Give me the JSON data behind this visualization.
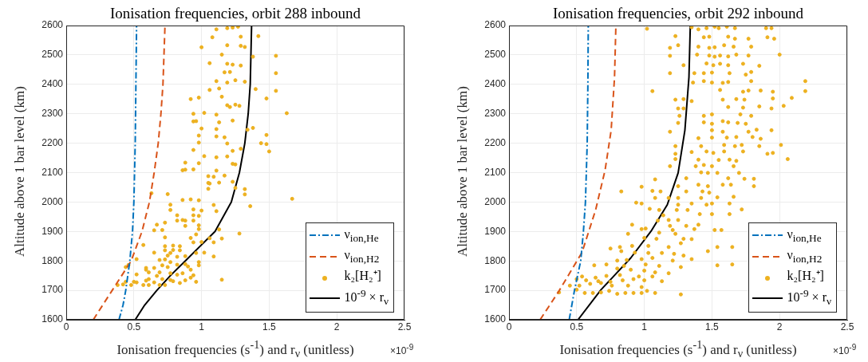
{
  "chart_data": [
    {
      "type": "line",
      "title": "Ionisation frequencies, orbit 288 inbound",
      "xlabel": "Ionisation frequencies (s$^{-1}$) and r$_{ν}$ (unitless)",
      "ylabel": "Altitude above 1 bar level (km)",
      "annotations": [
        "×10$^{-9}$"
      ],
      "xlim": [
        0,
        2.5
      ],
      "xticks": [
        0,
        0.5,
        1,
        1.5,
        2,
        2.5
      ],
      "ylim": [
        1600,
        2600
      ],
      "yticks": [
        1600,
        1700,
        1800,
        1900,
        2000,
        2100,
        2200,
        2300,
        2400,
        2500,
        2600
      ],
      "grid": true,
      "legend": "bottom right",
      "series": [
        {
          "name": "ν$_{ion,He}$",
          "type": "line",
          "color": "#0072bd",
          "line_style": "dashdot",
          "marker": "none",
          "x": [
            0.39,
            0.42,
            0.44,
            0.455,
            0.47,
            0.49,
            0.5,
            0.51,
            0.515,
            0.52
          ],
          "values": [
            1600,
            1650,
            1700,
            1750,
            1800,
            1900,
            2000,
            2200,
            2400,
            2600
          ]
        },
        {
          "name": "ν$_{ion,H2}$",
          "type": "line",
          "color": "#d95319",
          "line_style": "dashed",
          "marker": "none",
          "x": [
            0.2,
            0.34,
            0.48,
            0.56,
            0.615,
            0.65,
            0.68,
            0.7,
            0.715,
            0.73
          ],
          "values": [
            1600,
            1700,
            1800,
            1900,
            2000,
            2100,
            2200,
            2300,
            2400,
            2600
          ]
        },
        {
          "name": "k₂[H₂⁺]",
          "type": "scatter",
          "color": "#edb120",
          "marker": "circle",
          "x": [
            1.11,
            1.19,
            1.23,
            1.27,
            1.08,
            1.29,
            1.42,
            1.0,
            1.29,
            1.32,
            1.19,
            1.15,
            1.55,
            1.38,
            1.06,
            1.19,
            1.23,
            1.29,
            1.17,
            1.21,
            1.55,
            1.11,
            1.25,
            1.19,
            1.32,
            1.06,
            1.13,
            1.4,
            1.55,
            1.15,
            0.92,
            0.98,
            1.48,
            1.19,
            1.21,
            1.25,
            1.28,
            1.63,
            1.02,
            0.94,
            1.11,
            0.94,
            0.96,
            1.13,
            1.23,
            1.0,
            1.11,
            1.38,
            1.34,
            0.98,
            1.11,
            1.17,
            1.48,
            0.98,
            1.19,
            1.44,
            1.48,
            0.94,
            1.23,
            1.29,
            1.5,
            1.02,
            1.11,
            1.19,
            0.98,
            0.88,
            1.23,
            1.25,
            0.86,
            0.88,
            0.94,
            1.11,
            1.05,
            1.09,
            1.17,
            1.05,
            1.13,
            1.06,
            1.23,
            1.25,
            1.32,
            1.05,
            0.63,
            0.75,
            1.32,
            1.67,
            0.86,
            0.92,
            0.98,
            1.09,
            1.36,
            0.77,
            0.77,
            0.94,
            1.0,
            1.11,
            0.82,
            0.94,
            0.98,
            0.82,
            0.86,
            0.88,
            0.94,
            0.98,
            0.88,
            0.67,
            0.73,
            0.65,
            0.71,
            0.98,
            1.13,
            1.28,
            0.96,
            0.73,
            1.06,
            1.15,
            0.92,
            0.57,
            0.73,
            0.79,
            0.84,
            0.94,
            1.0,
            1.09,
            0.73,
            0.79,
            0.84,
            0.65,
            0.77,
            0.96,
            1.02,
            0.75,
            0.82,
            0.88,
            1.09,
            0.52,
            0.69,
            0.73,
            0.77,
            0.98,
            0.46,
            0.71,
            0.82,
            0.88,
            0.98,
            0.44,
            0.59,
            0.65,
            0.75,
            0.9,
            0.59,
            0.61,
            0.69,
            0.77,
            0.86,
            0.92,
            0.52,
            0.67,
            0.82,
            0.94,
            0.92,
            0.61,
            0.71,
            0.77,
            0.88,
            1.15,
            0.5,
            0.52,
            0.59,
            0.65,
            0.79,
            0.96,
            0.38,
            0.42,
            0.44,
            0.48,
            0.57,
            0.61,
            0.69,
            0.73,
            0.84
          ],
          "values": [
            2587,
            2591,
            2593,
            2596,
            2560,
            2562,
            2564,
            2526,
            2531,
            2527,
            2533,
            2501,
            2497,
            2494,
            2472,
            2470,
            2467,
            2464,
            2441,
            2442,
            2438,
            2411,
            2414,
            2406,
            2409,
            2381,
            2386,
            2384,
            2378,
            2358,
            2350,
            2355,
            2352,
            2329,
            2323,
            2331,
            2327,
            2302,
            2303,
            2300,
            2297,
            2274,
            2275,
            2271,
            2277,
            2250,
            2248,
            2252,
            2246,
            2226,
            2223,
            2220,
            2228,
            2202,
            2199,
            2200,
            2197,
            2177,
            2174,
            2181,
            2172,
            2156,
            2152,
            2155,
            2132,
            2134,
            2130,
            2128,
            2108,
            2110,
            2111,
            2107,
            2088,
            2086,
            2090,
            2065,
            2066,
            2063,
            2069,
            2048,
            2044,
            2045,
            2030,
            2027,
            2026,
            2011,
            2007,
            2009,
            2006,
            1990,
            1986,
            1991,
            1973,
            1975,
            1971,
            1969,
            1955,
            1955,
            1953,
            1937,
            1939,
            1937,
            1937,
            1921,
            1919,
            1923,
            1930,
            1904,
            1905,
            1908,
            1907,
            1893,
            1890,
            1880,
            1877,
            1876,
            1878,
            1854,
            1850,
            1852,
            1850,
            1863,
            1864,
            1863,
            1836,
            1837,
            1836,
            1828,
            1827,
            1827,
            1828,
            1818,
            1814,
            1816,
            1815,
            1806,
            1803,
            1805,
            1796,
            1796,
            1786,
            1785,
            1787,
            1789,
            1785,
            1779,
            1776,
            1776,
            1779,
            1781,
            1770,
            1761,
            1761,
            1758,
            1758,
            1770,
            1754,
            1749,
            1753,
            1751,
            1743,
            1738,
            1738,
            1735,
            1734,
            1736,
            1729,
            1727,
            1733,
            1727,
            1731,
            1729,
            1718,
            1720,
            1729,
            1718,
            1718,
            1718,
            1718,
            1718,
            1725
          ]
        },
        {
          "name": "10$^{-9}$ × r$_{ν}$",
          "type": "line",
          "color": "#000000",
          "line_style": "solid",
          "marker": "none",
          "x": [
            0.51,
            0.58,
            0.67,
            0.77,
            0.88,
            1.1,
            1.22,
            1.28,
            1.32,
            1.345,
            1.36,
            1.37
          ],
          "values": [
            1600,
            1650,
            1700,
            1750,
            1800,
            1900,
            2000,
            2100,
            2200,
            2300,
            2400,
            2600
          ]
        }
      ]
    },
    {
      "type": "line",
      "title": "Ionisation frequencies, orbit 292 inbound",
      "xlabel": "Ionisation frequencies (s$^{-1}$) and r$_{ν}$ (unitless)",
      "ylabel": "Altitude above 1 bar level (km)",
      "annotations": [
        "×10$^{-9}$"
      ],
      "xlim": [
        0,
        2.5
      ],
      "xticks": [
        0,
        0.5,
        1,
        1.5,
        2,
        2.5
      ],
      "ylim": [
        1600,
        2600
      ],
      "yticks": [
        1600,
        1700,
        1800,
        1900,
        2000,
        2100,
        2200,
        2300,
        2400,
        2500,
        2600
      ],
      "grid": true,
      "legend": "bottom right",
      "series": [
        {
          "name": "ν$_{ion,He}$",
          "type": "line",
          "color": "#0072bd",
          "line_style": "dashdot",
          "marker": "none",
          "x": [
            0.445,
            0.484,
            0.53,
            0.55,
            0.565,
            0.578,
            0.583,
            0.586
          ],
          "values": [
            1600,
            1700,
            1800,
            1900,
            2000,
            2200,
            2400,
            2600
          ]
        },
        {
          "name": "ν$_{ion,H2}$",
          "type": "line",
          "color": "#d95319",
          "line_style": "dashed",
          "marker": "none",
          "x": [
            0.23,
            0.37,
            0.54,
            0.64,
            0.71,
            0.755,
            0.78,
            0.79
          ],
          "values": [
            1600,
            1698,
            1829,
            1973,
            2108,
            2244,
            2424,
            2600
          ]
        },
        {
          "name": "k₂[H₂⁺]",
          "type": "scatter",
          "color": "#edb120",
          "marker": "circle",
          "x": [
            1.02,
            1.23,
            1.25,
            1.19,
            1.19,
            1.29,
            1.19,
            1.06,
            1.23,
            1.29,
            1.35,
            1.25,
            1.29,
            1.26,
            1.25,
            1.19,
            1.23,
            1.23,
            1.23,
            1.19,
            1.35,
            1.4,
            1.46,
            1.52,
            1.55,
            1.61,
            1.67,
            1.9,
            1.94,
            1.44,
            1.48,
            1.62,
            1.67,
            1.77,
            1.91,
            1.96,
            1.4,
            1.48,
            1.52,
            1.59,
            1.66,
            1.79,
            2.0,
            1.39,
            1.48,
            1.52,
            1.56,
            1.62,
            1.68,
            1.77,
            1.46,
            1.51,
            1.56,
            1.62,
            1.73,
            1.85,
            1.37,
            1.44,
            1.5,
            1.63,
            1.75,
            1.79,
            1.36,
            1.44,
            1.5,
            1.58,
            1.62,
            1.79,
            2.19,
            2.19,
            1.56,
            1.73,
            1.77,
            1.86,
            1.95,
            2.09,
            1.58,
            1.68,
            1.74,
            1.95,
            2.03,
            1.85,
            1.94,
            1.62,
            1.73,
            1.44,
            1.5,
            1.71,
            1.79,
            1.58,
            1.62,
            1.69,
            1.75,
            1.5,
            1.44,
            1.94,
            1.83,
            1.77,
            1.5,
            1.58,
            1.4,
            1.5,
            1.61,
            1.68,
            1.8,
            1.86,
            2.01,
            1.91,
            1.95,
            2.06,
            1.42,
            1.59,
            1.67,
            1.72,
            1.85,
            1.35,
            1.46,
            1.51,
            1.59,
            1.63,
            1.55,
            1.4,
            1.68,
            1.73,
            1.38,
            1.44,
            1.5,
            1.66,
            1.7,
            1.42,
            1.47,
            1.54,
            1.62,
            1.74,
            1.81,
            1.81,
            1.31,
            1.4,
            1.47,
            1.58,
            1.64,
            1.08,
            0.98,
            1.06,
            1.12,
            0.83,
            1.25,
            1.31,
            1.43,
            1.48,
            1.66,
            1.54,
            1.42,
            1.25,
            1.18,
            1.08,
            0.94,
            0.98,
            1.25,
            1.35,
            1.46,
            1.5,
            1.63,
            1.72,
            1.04,
            1.11,
            1.24,
            1.32,
            1.41,
            1.5,
            1.63,
            1.14,
            1.1,
            1.18,
            1.25,
            1.4,
            1.31,
            1.19,
            0.91,
            0.98,
            1.01,
            1.21,
            1.37,
            1.52,
            1.57,
            0.88,
            1.11,
            1.23,
            1.29,
            1.35,
            1.09,
            1.0,
            0.82,
            0.91,
            1.03,
            1.18,
            1.27,
            1.54,
            1.65,
            1.47,
            0.75,
            0.83,
            0.93,
            1.03,
            1.13,
            1.22,
            1.29,
            1.21,
            1.35,
            1.54,
            1.65,
            0.98,
            1.06,
            0.87,
            0.8,
            0.63,
            0.72,
            0.85,
            1.01,
            1.11,
            1.27,
            0.8,
            0.9,
            1.0,
            1.08,
            1.18,
            0.54,
            0.64,
            0.72,
            0.82,
            0.96,
            1.06,
            0.5,
            0.57,
            0.66,
            0.75,
            0.84,
            0.92,
            1.0,
            1.13,
            0.45,
            0.52,
            0.6,
            0.68,
            0.76,
            0.88,
            0.98,
            0.37,
            0.5,
            0.56,
            0.62,
            0.68,
            0.74,
            0.8,
            0.86,
            0.92,
            0.98,
            1.02,
            1.08,
            1.27
          ],
          "values": [
            2589,
            2564,
            2533,
            2524,
            2497,
            2465,
            2438,
            2377,
            2348,
            2350,
            2343,
            2318,
            2318,
            2293,
            2269,
            2239,
            2190,
            2164,
            2146,
            2122,
            2594,
            2587,
            2591,
            2596,
            2591,
            2596,
            2591,
            2591,
            2591,
            2560,
            2562,
            2562,
            2555,
            2555,
            2560,
            2555,
            2528,
            2524,
            2526,
            2533,
            2528,
            2528,
            2501,
            2501,
            2498,
            2494,
            2498,
            2495,
            2501,
            2498,
            2471,
            2465,
            2470,
            2465,
            2470,
            2463,
            2438,
            2438,
            2440,
            2438,
            2433,
            2442,
            2406,
            2411,
            2406,
            2405,
            2408,
            2411,
            2411,
            2377,
            2381,
            2375,
            2379,
            2379,
            2375,
            2354,
            2348,
            2350,
            2348,
            2352,
            2327,
            2325,
            2318,
            2323,
            2321,
            2293,
            2298,
            2298,
            2293,
            2275,
            2271,
            2269,
            2266,
            2266,
            2271,
            2244,
            2246,
            2239,
            2244,
            2239,
            2217,
            2219,
            2219,
            2221,
            2221,
            2215,
            2194,
            2164,
            2167,
            2146,
            2190,
            2194,
            2190,
            2194,
            2190,
            2170,
            2172,
            2167,
            2172,
            2144,
            2143,
            2144,
            2140,
            2172,
            2122,
            2126,
            2122,
            2122,
            2099,
            2101,
            2099,
            2099,
            2081,
            2079,
            2079,
            2054,
            2081,
            2059,
            2054,
            2059,
            2059,
            2077,
            2052,
            2038,
            2036,
            2036,
            2054,
            2036,
            2036,
            2032,
            2018,
            2016,
            2014,
            2014,
            2014,
            2014,
            1998,
            1995,
            1991,
            1995,
            1991,
            1995,
            1995,
            1975,
            1977,
            1973,
            1973,
            1973,
            1959,
            1959,
            1959,
            1955,
            1937,
            1939,
            1939,
            1923,
            1919,
            1919,
            1923,
            1908,
            1910,
            1905,
            1908,
            1905,
            1905,
            1892,
            1896,
            1892,
            1875,
            1874,
            1875,
            1878,
            1847,
            1851,
            1851,
            1847,
            1860,
            1847,
            1847,
            1833,
            1842,
            1833,
            1828,
            1827,
            1827,
            1824,
            1818,
            1801,
            1806,
            1785,
            1788,
            1806,
            1810,
            1803,
            1801,
            1785,
            1788,
            1783,
            1788,
            1783,
            1779,
            1774,
            1770,
            1767,
            1761,
            1758,
            1747,
            1743,
            1749,
            1752,
            1747,
            1747,
            1738,
            1734,
            1731,
            1729,
            1734,
            1738,
            1734,
            1731,
            1716,
            1716,
            1722,
            1725,
            1716,
            1716,
            1711,
            1693,
            1702,
            1691,
            1691,
            1693,
            1698,
            1688,
            1691,
            1691,
            1691,
            1698,
            1691,
            1686
          ]
        },
        {
          "name": "10$^{-9}$ × r$_{ν}$",
          "type": "line",
          "color": "#000000",
          "line_style": "solid",
          "marker": "none",
          "x": [
            0.51,
            0.68,
            0.9,
            1.05,
            1.17,
            1.25,
            1.3,
            1.33,
            1.34
          ],
          "values": [
            1600,
            1702,
            1810,
            1901,
            1991,
            2099,
            2244,
            2424,
            2600
          ]
        }
      ]
    }
  ]
}
